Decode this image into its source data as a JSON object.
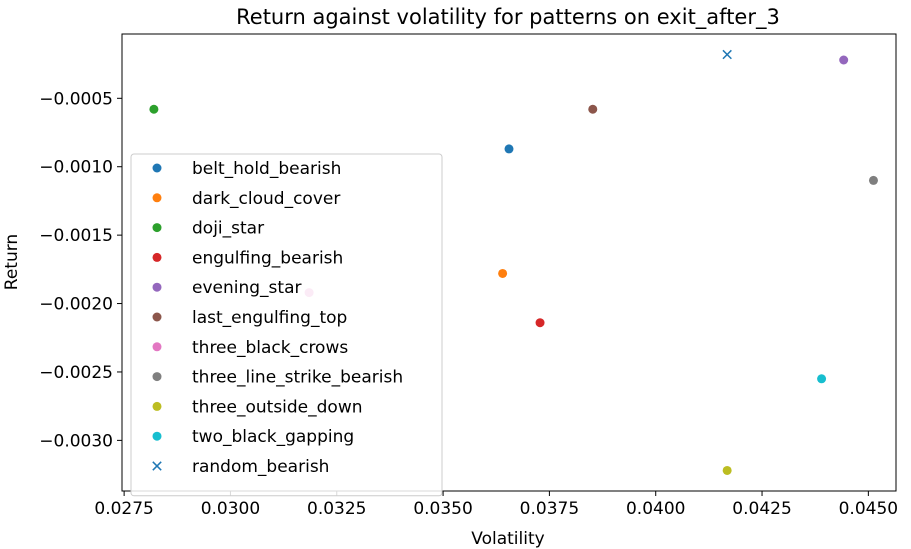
{
  "chart_data": {
    "type": "scatter",
    "title": "Return against volatility for patterns on exit_after_3",
    "xlabel": "Volatility",
    "ylabel": "Return",
    "xlim": [
      0.02745,
      0.04565
    ],
    "ylim": [
      -0.00337,
      -3e-05
    ],
    "xticks": [
      0.0275,
      0.03,
      0.0325,
      0.035,
      0.0375,
      0.04,
      0.0425,
      0.045
    ],
    "xtick_labels": [
      "0.0275",
      "0.0300",
      "0.0325",
      "0.0350",
      "0.0375",
      "0.0400",
      "0.0425",
      "0.0450"
    ],
    "yticks": [
      -0.0005,
      -0.001,
      -0.0015,
      -0.002,
      -0.0025,
      -0.003
    ],
    "ytick_labels": [
      "−0.0005",
      "−0.0010",
      "−0.0015",
      "−0.0020",
      "−0.0025",
      "−0.0030"
    ],
    "grid": false,
    "legend_position": "center-left",
    "series": [
      {
        "name": "belt_hold_bearish",
        "color": "#1f77b4",
        "marker": "circle",
        "x": 0.03655,
        "y": -0.00087
      },
      {
        "name": "dark_cloud_cover",
        "color": "#ff7f0e",
        "marker": "circle",
        "x": 0.0364,
        "y": -0.00178
      },
      {
        "name": "doji_star",
        "color": "#2ca02c",
        "marker": "circle",
        "x": 0.0282,
        "y": -0.00058
      },
      {
        "name": "engulfing_bearish",
        "color": "#d62728",
        "marker": "circle",
        "x": 0.03728,
        "y": -0.00214
      },
      {
        "name": "evening_star",
        "color": "#9467bd",
        "marker": "circle",
        "x": 0.04442,
        "y": -0.00022
      },
      {
        "name": "last_engulfing_top",
        "color": "#8c564b",
        "marker": "circle",
        "x": 0.03852,
        "y": -0.00058
      },
      {
        "name": "three_black_crows",
        "color": "#e377c2",
        "marker": "circle",
        "x": 0.03185,
        "y": -0.00192
      },
      {
        "name": "three_line_strike_bearish",
        "color": "#7f7f7f",
        "marker": "circle",
        "x": 0.04512,
        "y": -0.0011
      },
      {
        "name": "three_outside_down",
        "color": "#bcbd22",
        "marker": "circle",
        "x": 0.04168,
        "y": -0.00322
      },
      {
        "name": "two_black_gapping",
        "color": "#17becf",
        "marker": "circle",
        "x": 0.0439,
        "y": -0.00255
      },
      {
        "name": "random_bearish",
        "color": "#1f77b4",
        "marker": "x",
        "x": 0.04168,
        "y": -0.00018
      }
    ]
  }
}
